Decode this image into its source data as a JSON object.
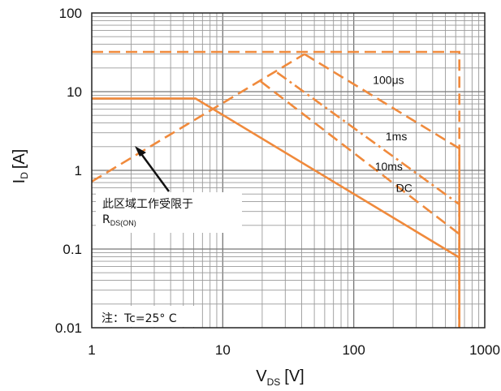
{
  "chart_data": {
    "type": "line",
    "title": "",
    "xlabel": "V",
    "xlabel_sub": "DS",
    "xlabel_unit": "[V]",
    "ylabel": "I",
    "ylabel_sub": "D",
    "ylabel_unit": "[A]",
    "x_scale": "log",
    "y_scale": "log",
    "xlim": [
      1,
      1000
    ],
    "ylim": [
      0.01,
      100
    ],
    "grid": true,
    "x_ticks": [
      {
        "value": 1,
        "label": "1"
      },
      {
        "value": 10,
        "label": "10"
      },
      {
        "value": 100,
        "label": "100"
      },
      {
        "value": 1000,
        "label": "1000"
      }
    ],
    "y_ticks": [
      {
        "value": 0.01,
        "label": "0.01"
      },
      {
        "value": 0.1,
        "label": "0.1"
      },
      {
        "value": 1,
        "label": "1"
      },
      {
        "value": 10,
        "label": "10"
      },
      {
        "value": 100,
        "label": "100"
      }
    ],
    "series": [
      {
        "name": "DC",
        "style": "solid",
        "color": "#f08a3c",
        "points": [
          [
            1,
            8.2
          ],
          [
            6.2,
            8.2
          ],
          [
            640,
            0.078
          ],
          [
            640,
            0.01
          ]
        ]
      },
      {
        "name": "10ms",
        "style": "dashed",
        "color": "#f08a3c",
        "points": [
          [
            19.5,
            13.5
          ],
          [
            640,
            0.155
          ],
          [
            640,
            0.01
          ]
        ]
      },
      {
        "name": "1ms",
        "style": "dashdot",
        "color": "#f08a3c",
        "points": [
          [
            26,
            17.5
          ],
          [
            640,
            0.37
          ],
          [
            640,
            0.01
          ]
        ]
      },
      {
        "name": "100μs",
        "style": "dashed",
        "color": "#f08a3c",
        "points": [
          [
            42,
            30
          ],
          [
            640,
            1.9
          ],
          [
            640,
            0.01
          ]
        ]
      },
      {
        "name": "",
        "style": "dashed",
        "color": "#f08a3c",
        "points": [
          [
            1,
            0.72
          ],
          [
            42,
            30
          ]
        ]
      },
      {
        "name": "",
        "style": "dashed",
        "color": "#f08a3c",
        "points": [
          [
            1,
            32
          ],
          [
            640,
            32
          ],
          [
            640,
            0.01
          ]
        ]
      }
    ],
    "curve_labels": [
      {
        "text": "100μs",
        "x": 140,
        "y": 12.5
      },
      {
        "text": "1ms",
        "x": 175,
        "y": 2.4
      },
      {
        "text": "10ms",
        "x": 145,
        "y": 1.0
      },
      {
        "text": "DC",
        "x": 210,
        "y": 0.53
      }
    ],
    "annotations": {
      "limit_text": "此区域工作受限于",
      "limit_r": "R",
      "limit_r_sub": "DS(ON)",
      "note": "注：Tc=25° C"
    },
    "colors": {
      "curve": "#f08a3c",
      "grid": "#9a9a9a",
      "frame": "#222222"
    }
  }
}
